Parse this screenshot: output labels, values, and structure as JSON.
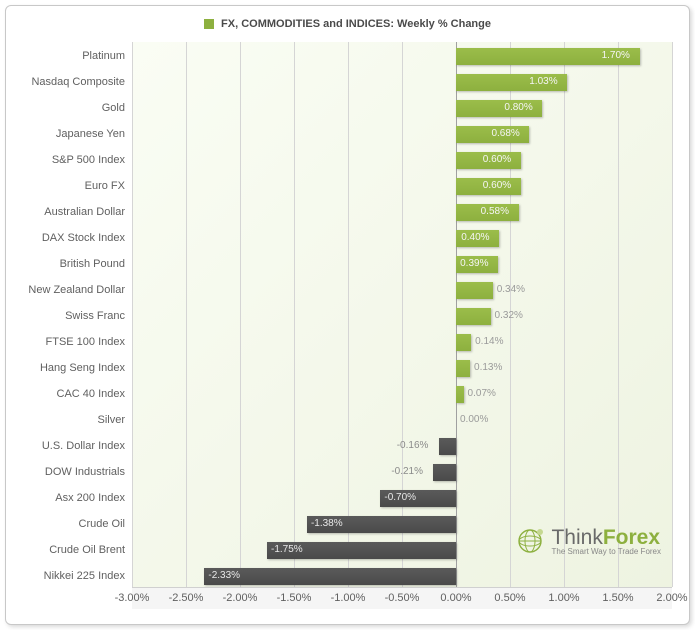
{
  "chart": {
    "type": "bar-horizontal",
    "title": "FX, COMMODITIES and INDICES: Weekly % Change",
    "legend_color": "#8db03f",
    "background_gradient_from": "#fafdf4",
    "background_gradient_to": "#eef3e1",
    "positive_bar_color": "#8db03f",
    "negative_bar_color": "#4a4a4a",
    "grid_color": "#d5d5d5",
    "zero_line_color": "#a0a0a0",
    "label_font_size": 11,
    "data_label_font_size": 10,
    "xmin": -3.0,
    "xmax": 2.0,
    "xtick_step": 0.5,
    "xticks": [
      {
        "v": -3.0,
        "label": "-3.00%"
      },
      {
        "v": -2.5,
        "label": "-2.50%"
      },
      {
        "v": -2.0,
        "label": "-2.00%"
      },
      {
        "v": -1.5,
        "label": "-1.50%"
      },
      {
        "v": -1.0,
        "label": "-1.00%"
      },
      {
        "v": -0.5,
        "label": "-0.50%"
      },
      {
        "v": 0.0,
        "label": "0.00%"
      },
      {
        "v": 0.5,
        "label": "0.50%"
      },
      {
        "v": 1.0,
        "label": "1.00%"
      },
      {
        "v": 1.5,
        "label": "1.50%"
      },
      {
        "v": 2.0,
        "label": "2.00%"
      }
    ],
    "items": [
      {
        "name": "Platinum",
        "value": 1.7,
        "label": "1.70%"
      },
      {
        "name": "Nasdaq Composite",
        "value": 1.03,
        "label": "1.03%"
      },
      {
        "name": "Gold",
        "value": 0.8,
        "label": "0.80%"
      },
      {
        "name": "Japanese Yen",
        "value": 0.68,
        "label": "0.68%"
      },
      {
        "name": "S&P 500 Index",
        "value": 0.6,
        "label": "0.60%"
      },
      {
        "name": "Euro FX",
        "value": 0.6,
        "label": "0.60%"
      },
      {
        "name": "Australian Dollar",
        "value": 0.58,
        "label": "0.58%"
      },
      {
        "name": "DAX Stock Index",
        "value": 0.4,
        "label": "0.40%"
      },
      {
        "name": "British Pound",
        "value": 0.39,
        "label": "0.39%"
      },
      {
        "name": "New Zealand Dollar",
        "value": 0.34,
        "label": "0.34%"
      },
      {
        "name": "Swiss Franc",
        "value": 0.32,
        "label": "0.32%"
      },
      {
        "name": "FTSE 100 Index",
        "value": 0.14,
        "label": "0.14%"
      },
      {
        "name": "Hang Seng Index",
        "value": 0.13,
        "label": "0.13%"
      },
      {
        "name": "CAC 40 Index",
        "value": 0.07,
        "label": "0.07%"
      },
      {
        "name": "Silver",
        "value": 0.0,
        "label": "0.00%"
      },
      {
        "name": "U.S. Dollar Index",
        "value": -0.16,
        "label": "-0.16%"
      },
      {
        "name": "DOW Industrials",
        "value": -0.21,
        "label": "-0.21%"
      },
      {
        "name": "Asx 200 Index",
        "value": -0.7,
        "label": "-0.70%"
      },
      {
        "name": "Crude Oil",
        "value": -1.38,
        "label": "-1.38%"
      },
      {
        "name": "Crude Oil Brent",
        "value": -1.75,
        "label": "-1.75%"
      },
      {
        "name": "Nikkei 225 Index",
        "value": -2.33,
        "label": "-2.33%"
      }
    ]
  },
  "logo": {
    "brand_prefix": "Think",
    "brand_accent": "Forex",
    "tagline": "The Smart Way to Trade Forex",
    "icon_color": "#8db03f"
  }
}
